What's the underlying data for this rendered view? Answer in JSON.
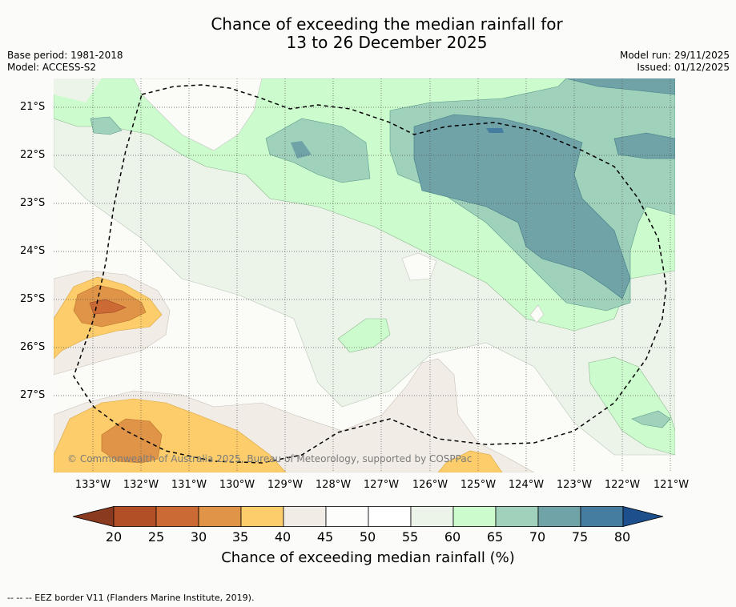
{
  "title": {
    "line1": "Chance of exceeding the median rainfall for",
    "line2": "13 to 26 December 2025"
  },
  "meta": {
    "base_period": "Base period: 1981-2018",
    "model": "Model: ACCESS-S2",
    "model_run": "Model run: 29/11/2025",
    "issued": "Issued: 01/12/2025"
  },
  "map": {
    "lat_labels": [
      "21°S",
      "22°S",
      "23°S",
      "24°S",
      "25°S",
      "26°S",
      "27°S"
    ],
    "lon_labels": [
      "133°W",
      "132°W",
      "131°W",
      "130°W",
      "129°W",
      "128°W",
      "127°W",
      "126°W",
      "125°W",
      "124°W",
      "123°W",
      "122°W",
      "121°W"
    ],
    "copyright": "© Commonwealth of Australia 2025, Bureau of Meteorology, supported by COSPPac",
    "background_color": "#fbfbf8"
  },
  "colorbar": {
    "ticks": [
      "20",
      "25",
      "30",
      "35",
      "40",
      "45",
      "50",
      "55",
      "60",
      "65",
      "70",
      "75",
      "80"
    ],
    "colors": [
      "#8a3a1f",
      "#b24f26",
      "#cc6a35",
      "#df9447",
      "#fdcd6b",
      "#f1ece6",
      "#fdfdfb",
      "#ffffff",
      "#ecf4ea",
      "#ccfccd",
      "#9fd1bb",
      "#6fa3a8",
      "#457da0",
      "#1c4f8c"
    ],
    "title": "Chance of exceeding median rainfall (%)"
  },
  "footer": {
    "legend": "--  --  -- EEZ border V11 (Flanders Marine Institute, 2019)."
  }
}
